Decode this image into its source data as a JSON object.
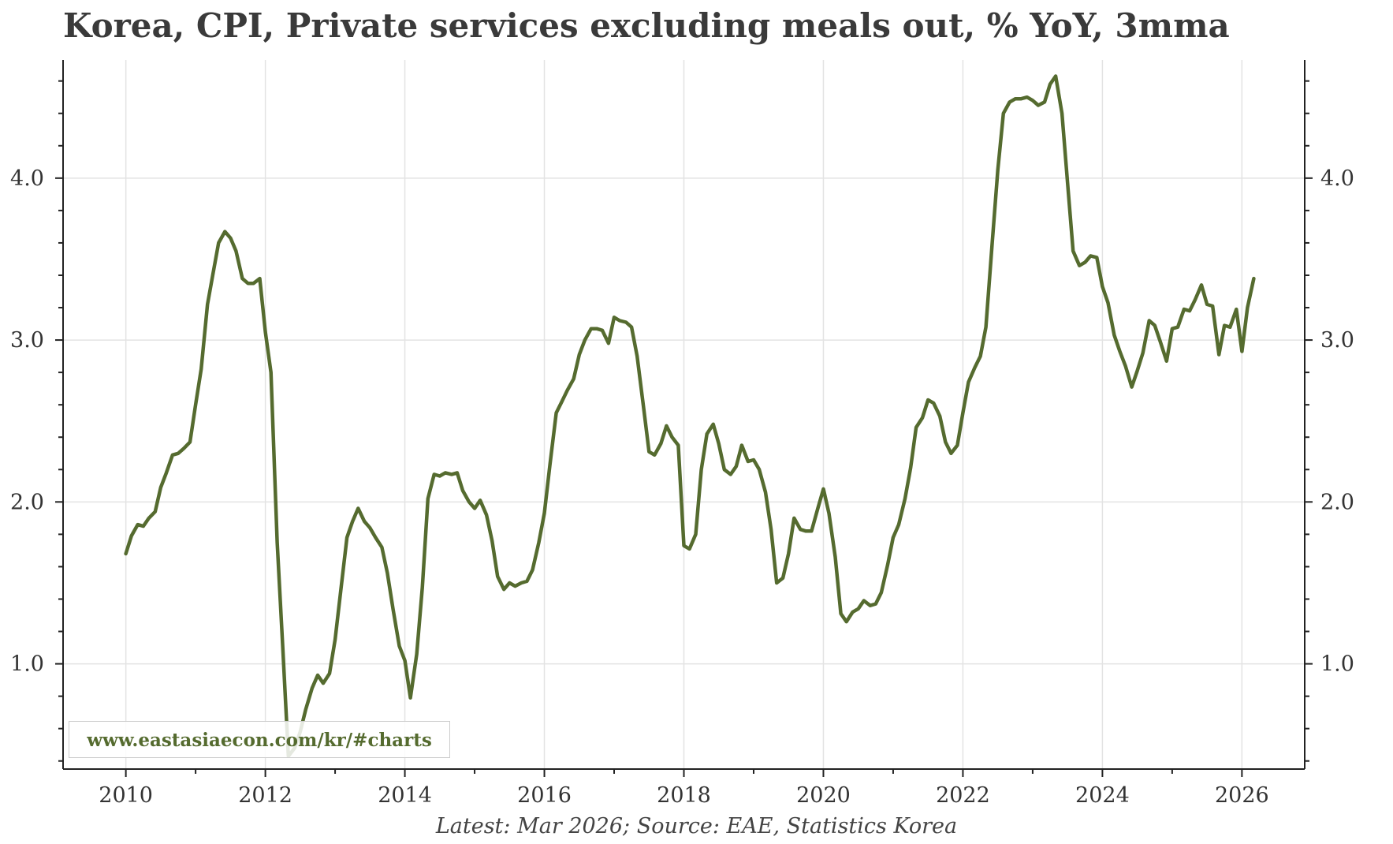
{
  "chart_data": {
    "type": "line",
    "title": "Korea, CPI, Private services excluding meals out, % YoY, 3mma",
    "source_note": "Latest: Mar 2026; Source: EAE, Statistics Korea",
    "watermark": "www.eastasiaecon.com/kr/#charts",
    "xlim": [
      2009.1,
      2026.9
    ],
    "ylim": [
      0.35,
      4.73
    ],
    "x_ticks": [
      {
        "value": 2010,
        "label": "2010"
      },
      {
        "value": 2012,
        "label": "2012"
      },
      {
        "value": 2014,
        "label": "2014"
      },
      {
        "value": 2016,
        "label": "2016"
      },
      {
        "value": 2018,
        "label": "2018"
      },
      {
        "value": 2020,
        "label": "2020"
      },
      {
        "value": 2022,
        "label": "2022"
      },
      {
        "value": 2024,
        "label": "2024"
      },
      {
        "value": 2026,
        "label": "2026"
      }
    ],
    "y_ticks": [
      {
        "value": 1.0,
        "label": "1.0"
      },
      {
        "value": 2.0,
        "label": "2.0"
      },
      {
        "value": 3.0,
        "label": "3.0"
      },
      {
        "value": 4.0,
        "label": "4.0"
      }
    ],
    "grid": true,
    "colors": {
      "line": "#556b2f",
      "grid": "#e3e3e3",
      "axis": "#222222"
    },
    "series": [
      {
        "points": [
          [
            2010.0,
            1.68
          ],
          [
            2010.08,
            1.79
          ],
          [
            2010.17,
            1.86
          ],
          [
            2010.25,
            1.85
          ],
          [
            2010.33,
            1.9
          ],
          [
            2010.42,
            1.94
          ],
          [
            2010.5,
            2.09
          ],
          [
            2010.58,
            2.18
          ],
          [
            2010.67,
            2.29
          ],
          [
            2010.75,
            2.3
          ],
          [
            2010.83,
            2.33
          ],
          [
            2010.92,
            2.37
          ],
          [
            2011.0,
            2.6
          ],
          [
            2011.08,
            2.82
          ],
          [
            2011.17,
            3.22
          ],
          [
            2011.25,
            3.41
          ],
          [
            2011.33,
            3.6
          ],
          [
            2011.42,
            3.67
          ],
          [
            2011.5,
            3.63
          ],
          [
            2011.58,
            3.55
          ],
          [
            2011.67,
            3.38
          ],
          [
            2011.75,
            3.35
          ],
          [
            2011.83,
            3.35
          ],
          [
            2011.92,
            3.38
          ],
          [
            2012.0,
            3.05
          ],
          [
            2012.08,
            2.8
          ],
          [
            2012.17,
            1.75
          ],
          [
            2012.25,
            1.1
          ],
          [
            2012.33,
            0.43
          ],
          [
            2012.42,
            0.48
          ],
          [
            2012.5,
            0.58
          ],
          [
            2012.58,
            0.72
          ],
          [
            2012.67,
            0.85
          ],
          [
            2012.75,
            0.93
          ],
          [
            2012.83,
            0.88
          ],
          [
            2012.92,
            0.94
          ],
          [
            2013.0,
            1.15
          ],
          [
            2013.08,
            1.45
          ],
          [
            2013.17,
            1.78
          ],
          [
            2013.25,
            1.88
          ],
          [
            2013.33,
            1.96
          ],
          [
            2013.42,
            1.88
          ],
          [
            2013.5,
            1.84
          ],
          [
            2013.58,
            1.78
          ],
          [
            2013.67,
            1.72
          ],
          [
            2013.75,
            1.56
          ],
          [
            2013.83,
            1.34
          ],
          [
            2013.92,
            1.11
          ],
          [
            2014.0,
            1.02
          ],
          [
            2014.08,
            0.79
          ],
          [
            2014.17,
            1.06
          ],
          [
            2014.25,
            1.47
          ],
          [
            2014.33,
            2.02
          ],
          [
            2014.42,
            2.17
          ],
          [
            2014.5,
            2.16
          ],
          [
            2014.58,
            2.18
          ],
          [
            2014.67,
            2.17
          ],
          [
            2014.75,
            2.18
          ],
          [
            2014.83,
            2.07
          ],
          [
            2014.92,
            2.0
          ],
          [
            2015.0,
            1.96
          ],
          [
            2015.08,
            2.01
          ],
          [
            2015.17,
            1.92
          ],
          [
            2015.25,
            1.76
          ],
          [
            2015.33,
            1.54
          ],
          [
            2015.42,
            1.46
          ],
          [
            2015.5,
            1.5
          ],
          [
            2015.58,
            1.48
          ],
          [
            2015.67,
            1.5
          ],
          [
            2015.75,
            1.51
          ],
          [
            2015.83,
            1.58
          ],
          [
            2015.92,
            1.75
          ],
          [
            2016.0,
            1.93
          ],
          [
            2016.08,
            2.23
          ],
          [
            2016.17,
            2.55
          ],
          [
            2016.25,
            2.62
          ],
          [
            2016.33,
            2.69
          ],
          [
            2016.42,
            2.76
          ],
          [
            2016.5,
            2.91
          ],
          [
            2016.58,
            3.0
          ],
          [
            2016.67,
            3.07
          ],
          [
            2016.75,
            3.07
          ],
          [
            2016.83,
            3.06
          ],
          [
            2016.92,
            2.98
          ],
          [
            2017.0,
            3.14
          ],
          [
            2017.08,
            3.12
          ],
          [
            2017.17,
            3.11
          ],
          [
            2017.25,
            3.08
          ],
          [
            2017.33,
            2.9
          ],
          [
            2017.42,
            2.59
          ],
          [
            2017.5,
            2.31
          ],
          [
            2017.58,
            2.29
          ],
          [
            2017.67,
            2.36
          ],
          [
            2017.75,
            2.47
          ],
          [
            2017.83,
            2.4
          ],
          [
            2017.92,
            2.35
          ],
          [
            2018.0,
            1.73
          ],
          [
            2018.08,
            1.71
          ],
          [
            2018.17,
            1.8
          ],
          [
            2018.25,
            2.2
          ],
          [
            2018.33,
            2.42
          ],
          [
            2018.42,
            2.48
          ],
          [
            2018.5,
            2.36
          ],
          [
            2018.58,
            2.2
          ],
          [
            2018.67,
            2.17
          ],
          [
            2018.75,
            2.22
          ],
          [
            2018.83,
            2.35
          ],
          [
            2018.92,
            2.25
          ],
          [
            2019.0,
            2.26
          ],
          [
            2019.08,
            2.2
          ],
          [
            2019.17,
            2.06
          ],
          [
            2019.25,
            1.83
          ],
          [
            2019.33,
            1.5
          ],
          [
            2019.42,
            1.53
          ],
          [
            2019.5,
            1.68
          ],
          [
            2019.58,
            1.9
          ],
          [
            2019.67,
            1.83
          ],
          [
            2019.75,
            1.82
          ],
          [
            2019.83,
            1.82
          ],
          [
            2019.92,
            1.96
          ],
          [
            2020.0,
            2.08
          ],
          [
            2020.08,
            1.93
          ],
          [
            2020.17,
            1.66
          ],
          [
            2020.25,
            1.31
          ],
          [
            2020.33,
            1.26
          ],
          [
            2020.42,
            1.32
          ],
          [
            2020.5,
            1.34
          ],
          [
            2020.58,
            1.39
          ],
          [
            2020.67,
            1.36
          ],
          [
            2020.75,
            1.37
          ],
          [
            2020.83,
            1.44
          ],
          [
            2020.92,
            1.61
          ],
          [
            2021.0,
            1.78
          ],
          [
            2021.08,
            1.86
          ],
          [
            2021.17,
            2.02
          ],
          [
            2021.25,
            2.21
          ],
          [
            2021.33,
            2.46
          ],
          [
            2021.42,
            2.52
          ],
          [
            2021.5,
            2.63
          ],
          [
            2021.58,
            2.61
          ],
          [
            2021.67,
            2.53
          ],
          [
            2021.75,
            2.37
          ],
          [
            2021.83,
            2.3
          ],
          [
            2021.92,
            2.35
          ],
          [
            2022.0,
            2.55
          ],
          [
            2022.08,
            2.74
          ],
          [
            2022.17,
            2.83
          ],
          [
            2022.25,
            2.9
          ],
          [
            2022.33,
            3.08
          ],
          [
            2022.42,
            3.6
          ],
          [
            2022.5,
            4.05
          ],
          [
            2022.58,
            4.4
          ],
          [
            2022.67,
            4.47
          ],
          [
            2022.75,
            4.49
          ],
          [
            2022.83,
            4.49
          ],
          [
            2022.92,
            4.5
          ],
          [
            2023.0,
            4.48
          ],
          [
            2023.08,
            4.45
          ],
          [
            2023.17,
            4.47
          ],
          [
            2023.25,
            4.58
          ],
          [
            2023.33,
            4.63
          ],
          [
            2023.42,
            4.4
          ],
          [
            2023.5,
            3.97
          ],
          [
            2023.58,
            3.55
          ],
          [
            2023.67,
            3.46
          ],
          [
            2023.75,
            3.48
          ],
          [
            2023.83,
            3.52
          ],
          [
            2023.92,
            3.51
          ],
          [
            2024.0,
            3.33
          ],
          [
            2024.08,
            3.23
          ],
          [
            2024.17,
            3.03
          ],
          [
            2024.25,
            2.93
          ],
          [
            2024.33,
            2.84
          ],
          [
            2024.42,
            2.71
          ],
          [
            2024.5,
            2.81
          ],
          [
            2024.58,
            2.92
          ],
          [
            2024.67,
            3.12
          ],
          [
            2024.75,
            3.09
          ],
          [
            2024.83,
            2.99
          ],
          [
            2024.92,
            2.87
          ],
          [
            2025.0,
            3.07
          ],
          [
            2025.08,
            3.08
          ],
          [
            2025.17,
            3.19
          ],
          [
            2025.25,
            3.18
          ],
          [
            2025.33,
            3.25
          ],
          [
            2025.42,
            3.34
          ],
          [
            2025.5,
            3.22
          ],
          [
            2025.58,
            3.21
          ],
          [
            2025.67,
            2.91
          ],
          [
            2025.75,
            3.09
          ],
          [
            2025.83,
            3.08
          ],
          [
            2025.92,
            3.19
          ],
          [
            2026.0,
            2.93
          ],
          [
            2026.08,
            3.2
          ],
          [
            2026.17,
            3.38
          ]
        ]
      }
    ]
  }
}
